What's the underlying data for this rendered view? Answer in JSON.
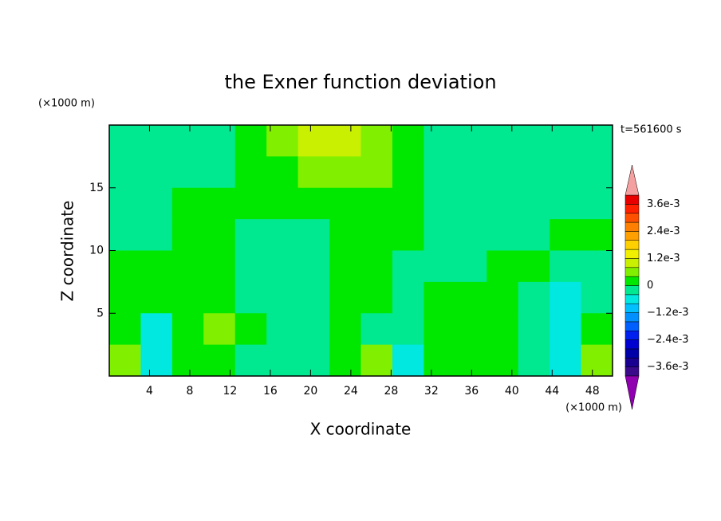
{
  "chart_data": {
    "type": "contour",
    "title": "the Exner function deviation",
    "annotation": "t=561600 s",
    "x_label": "X coordinate",
    "y_label": "Z coordinate",
    "x_unit": "(×1000 m)",
    "y_unit": "(×1000 m)",
    "xlim": [
      0,
      50
    ],
    "ylim": [
      0,
      20
    ],
    "xticks": [
      4,
      8,
      12,
      16,
      20,
      24,
      28,
      32,
      36,
      40,
      44,
      48
    ],
    "yticks": [
      5,
      10,
      15
    ],
    "levels": [
      -0.004,
      -0.0036,
      -0.0032,
      -0.0028,
      -0.0024,
      -0.002,
      -0.0016,
      -0.0012,
      -0.0008,
      -0.0004,
      0,
      0.0004,
      0.0008,
      0.0012,
      0.0016,
      0.002,
      0.0024,
      0.0028,
      0.0032,
      0.0036,
      0.004
    ],
    "colors": [
      "#9000b0",
      "#3a0a8a",
      "#1a0090",
      "#0000a8",
      "#0000d0",
      "#0020f0",
      "#0060ff",
      "#0090ff",
      "#00c0ff",
      "#00e8e0",
      "#00e890",
      "#00e800",
      "#80f000",
      "#c8f000",
      "#f0f000",
      "#ffd000",
      "#ffa000",
      "#ff8000",
      "#ff5000",
      "#ff2000",
      "#e80000",
      "#f4a0a0"
    ],
    "colorbar_ticks": [
      {
        "value": 0.0036,
        "label": "3.6e-3"
      },
      {
        "value": 0.0024,
        "label": "2.4e-3"
      },
      {
        "value": 0.0012,
        "label": "1.2e-3"
      },
      0,
      {
        "value": -0.0012,
        "label": "−1.2e-3"
      },
      {
        "value": -0.0024,
        "label": "−2.4e-3"
      },
      {
        "value": -0.0036,
        "label": "−3.6e-3"
      }
    ],
    "z": [
      [
        -0.0002,
        -0.0002,
        -0.0002,
        -0.0002,
        0.0002,
        0.0006,
        0.001,
        0.001,
        0.0006,
        0.0002,
        -0.0002,
        -0.0002,
        -0.0002,
        -0.0002,
        -0.0002,
        -0.0002
      ],
      [
        -0.0002,
        -0.0002,
        -0.0002,
        -0.0002,
        0.0002,
        0.0002,
        0.0006,
        0.0006,
        0.0006,
        0.0002,
        -0.0002,
        -0.0002,
        -0.0002,
        -0.0002,
        -0.0002,
        -0.0002
      ],
      [
        -0.0002,
        -0.0002,
        0.0002,
        0.0002,
        0.0002,
        0.0002,
        0.0002,
        0.0002,
        0.0002,
        0.0002,
        -0.0002,
        -0.0002,
        -0.0002,
        -0.0002,
        -0.0002,
        -0.0002
      ],
      [
        -0.0002,
        -0.0002,
        0.0002,
        0.0002,
        -0.0002,
        -0.0002,
        -0.0002,
        0.0002,
        0.0002,
        0.0002,
        -0.0002,
        -0.0002,
        -0.0002,
        -0.0002,
        0.0002,
        0.0002
      ],
      [
        0.0002,
        0.0002,
        0.0002,
        0.0002,
        -0.0002,
        -0.0002,
        -0.0002,
        0.0002,
        0.0002,
        -0.0002,
        -0.0002,
        -0.0002,
        0.0002,
        0.0002,
        -0.0002,
        -0.0002
      ],
      [
        0.0002,
        0.0002,
        0.0002,
        0.0002,
        -0.0002,
        -0.0002,
        -0.0002,
        0.0002,
        0.0002,
        -0.0002,
        0.0002,
        0.0002,
        0.0002,
        -0.0002,
        -0.0006,
        -0.0002
      ],
      [
        0.0002,
        -0.0006,
        0.0002,
        0.0006,
        0.0002,
        -0.0002,
        -0.0002,
        0.0002,
        -0.0002,
        -0.0002,
        0.0002,
        0.0002,
        0.0002,
        -0.0002,
        -0.0006,
        0.0002
      ],
      [
        0.0006,
        -0.0006,
        0.0002,
        0.0002,
        -0.0002,
        -0.0002,
        -0.0002,
        0.0002,
        0.0006,
        -0.0006,
        0.0002,
        0.0002,
        0.0002,
        -0.0002,
        -0.0006,
        0.0006
      ]
    ]
  }
}
